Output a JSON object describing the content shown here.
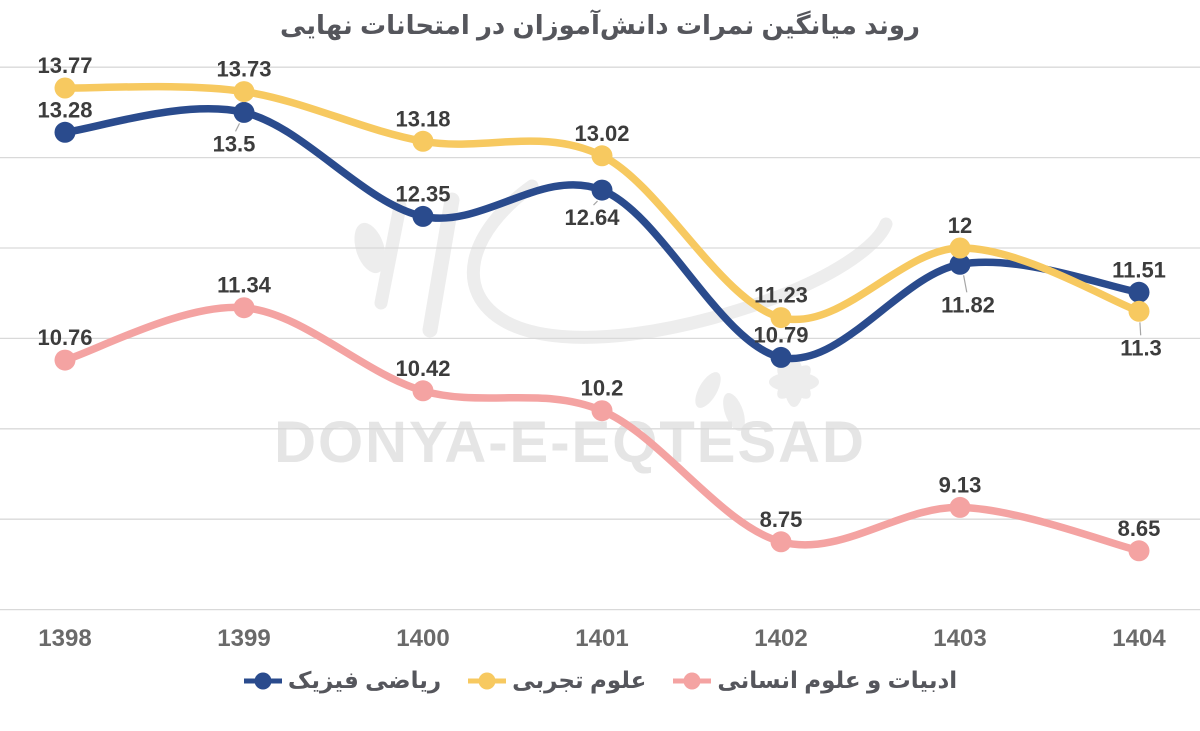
{
  "title": "روند میانگین نمرات دانش‌آموزان در امتحانات نهایی",
  "watermark": {
    "latin": "DONYA-E-EQTESAD",
    "persian": "دنیای اقتصاد"
  },
  "colors": {
    "grid": "#d9d9d9",
    "data_label": "#3c3c3c",
    "axis_label": "#6a6a6a",
    "title_text": "#55565c",
    "legend_text": "#55565c",
    "leader_line": "#a6a6a6",
    "watermark_text": "#e5e5e5",
    "watermark_calligraphy": "#ededed",
    "background": "#ffffff"
  },
  "chart_data": {
    "type": "line",
    "title": "روند میانگین نمرات دانش‌آموزان در امتحانات نهایی",
    "xlabel": "",
    "ylabel": "",
    "categories": [
      "1398",
      "1399",
      "1400",
      "1401",
      "1402",
      "1403",
      "1404"
    ],
    "ylim": [
      8,
      14
    ],
    "y_gridlines": [
      8,
      9,
      10,
      11,
      12,
      13,
      14
    ],
    "grid": "horizontal",
    "legend_position": "bottom",
    "line_style": "smooth",
    "markers": "filled-circles",
    "series": [
      {
        "name": "ریاضی فیزیک",
        "color": "#2a4b8d",
        "values": [
          13.28,
          13.5,
          12.35,
          12.64,
          10.79,
          11.82,
          11.51
        ],
        "labels": [
          "13.28",
          "13.5",
          "12.35",
          "12.64",
          "10.79",
          "11.82",
          "11.51"
        ],
        "labels_below": {
          "1": {
            "dx": -10,
            "dy": 31
          },
          "3": {
            "dx": -10,
            "dy": 27
          },
          "5": {
            "dx": 8,
            "dy": 40
          }
        }
      },
      {
        "name": "علوم تجربی",
        "color": "#f7c960",
        "values": [
          13.77,
          13.73,
          13.18,
          13.02,
          11.23,
          12,
          11.3
        ],
        "labels": [
          "13.77",
          "13.73",
          "13.18",
          "13.02",
          "11.23",
          "12",
          "11.3"
        ],
        "labels_below": {
          "6": {
            "dx": 2,
            "dy": 36
          }
        }
      },
      {
        "name": "ادبیات و علوم انسانی",
        "color": "#f4a3a2",
        "values": [
          10.76,
          11.34,
          10.42,
          10.2,
          8.75,
          9.13,
          8.65
        ],
        "labels": [
          "10.76",
          "11.34",
          "10.42",
          "10.2",
          "8.75",
          "9.13",
          "8.65"
        ],
        "labels_below": {}
      }
    ]
  }
}
